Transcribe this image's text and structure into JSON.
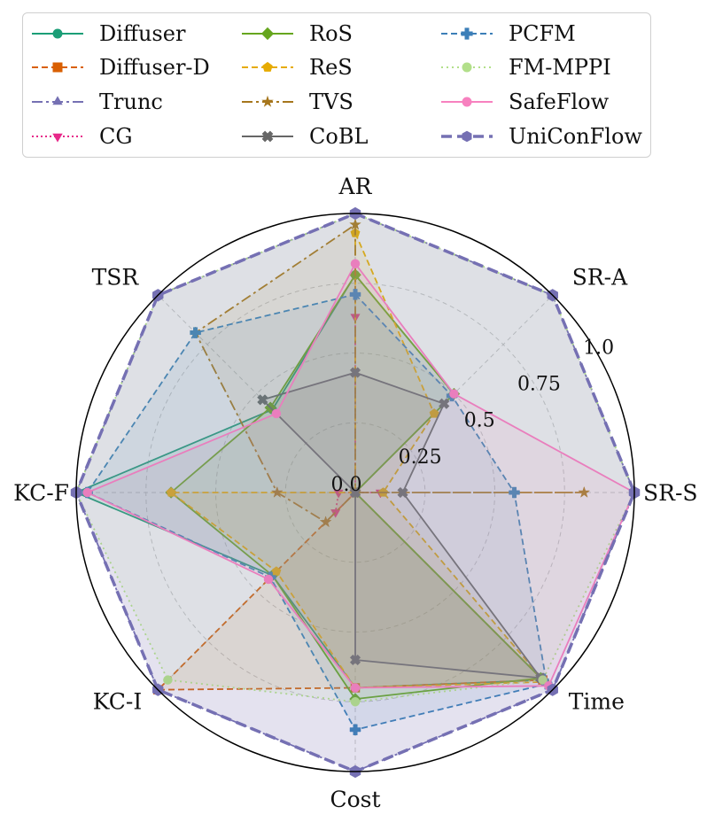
{
  "chart_data": {
    "type": "radar",
    "axes": [
      "AR",
      "SR-A",
      "SR-S",
      "Time",
      "Cost",
      "KC-I",
      "KC-F",
      "TSR"
    ],
    "rticks": [
      "0.0",
      "0.25",
      "0.5",
      "0.75",
      "1.0"
    ],
    "rtick_values": [
      0,
      0.25,
      0.5,
      0.75,
      1.0
    ],
    "rlim": [
      0,
      1
    ],
    "grid": true,
    "legend_position": "top",
    "series": [
      {
        "name": "Diffuser",
        "color": "#1b9e77",
        "dash": "",
        "marker": "circle",
        "values": [
          0.78,
          0.5,
          0.0,
          0.95,
          0.7,
          0.42,
          1.0,
          0.42
        ]
      },
      {
        "name": "Diffuser-D",
        "color": "#d95f02",
        "dash": "7,4",
        "marker": "square",
        "values": [
          0.0,
          0.0,
          0.0,
          0.95,
          0.7,
          1.0,
          0.0,
          0.0
        ]
      },
      {
        "name": "Trunc",
        "color": "#7570b3",
        "dash": "12,4,3,4",
        "marker": "triangle",
        "values": [
          1.0,
          1.0,
          1.0,
          1.0,
          1.0,
          1.0,
          1.0,
          1.0
        ]
      },
      {
        "name": "CG",
        "color": "#e7298a",
        "dash": "2,3",
        "marker": "tridown",
        "values": [
          0.63,
          0.0,
          0.09,
          0.0,
          0.0,
          0.1,
          0.06,
          0.0
        ]
      },
      {
        "name": "RoS",
        "color": "#66a61e",
        "dash": "",
        "marker": "diamond",
        "values": [
          0.78,
          0.5,
          0.0,
          0.94,
          0.74,
          0.42,
          0.66,
          0.43
        ]
      },
      {
        "name": "ReS",
        "color": "#e6ab02",
        "dash": "7,4",
        "marker": "pentagon",
        "values": [
          0.93,
          0.4,
          0.1,
          0.96,
          0.7,
          0.4,
          0.66,
          0.0
        ]
      },
      {
        "name": "TVS",
        "color": "#a6761d",
        "dash": "12,4,3,4",
        "marker": "star",
        "values": [
          0.96,
          0.0,
          0.82,
          0.0,
          0.0,
          0.15,
          0.28,
          0.81
        ]
      },
      {
        "name": "CoBL",
        "color": "#666666",
        "dash": "",
        "marker": "xcross",
        "values": [
          0.43,
          0.45,
          0.17,
          0.94,
          0.6,
          0.0,
          0.0,
          0.47
        ]
      },
      {
        "name": "PCFM",
        "color": "#3c7fb8",
        "dash": "7,4",
        "marker": "plus",
        "values": [
          0.71,
          0.49,
          0.57,
          0.97,
          0.85,
          0.43,
          0.96,
          0.81
        ]
      },
      {
        "name": "FM-MPPI",
        "color": "#b2df8a",
        "dash": "2,4",
        "marker": "circle",
        "values": [
          1.0,
          1.0,
          1.0,
          0.95,
          0.75,
          0.95,
          1.0,
          1.0
        ]
      },
      {
        "name": "SafeFlow",
        "color": "#f781bf",
        "dash": "",
        "marker": "circle",
        "values": [
          0.82,
          0.5,
          1.0,
          0.98,
          0.7,
          0.44,
          0.96,
          0.4
        ]
      },
      {
        "name": "UniConFlow",
        "color": "#7570b3",
        "dash": "12,6",
        "marker": "hexagon",
        "values": [
          1.0,
          1.0,
          1.0,
          1.0,
          1.0,
          1.0,
          1.0,
          1.0
        ]
      }
    ]
  }
}
